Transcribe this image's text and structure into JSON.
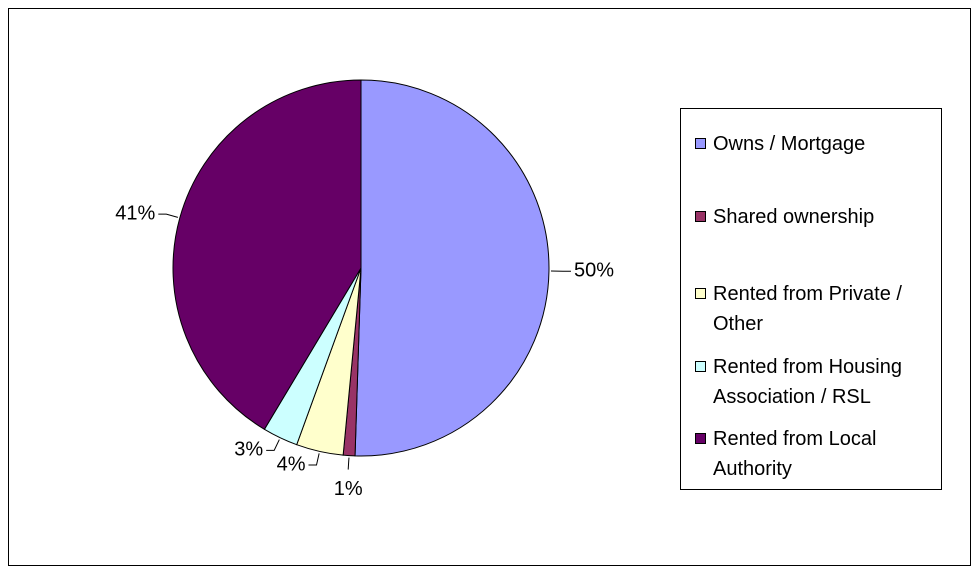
{
  "chart_data": {
    "type": "pie",
    "categories": [
      "Owns / Mortgage",
      "Shared ownership",
      "Rented from Private / Other",
      "Rented from Housing Association / RSL",
      "Rented from Local Authority"
    ],
    "values": [
      50,
      1,
      4,
      3,
      41
    ],
    "value_labels": [
      "50%",
      "1%",
      "4%",
      "3%",
      "41%"
    ],
    "colors": [
      "#9999ff",
      "#993366",
      "#ffffcc",
      "#ccffff",
      "#660066"
    ],
    "legend": "right"
  }
}
